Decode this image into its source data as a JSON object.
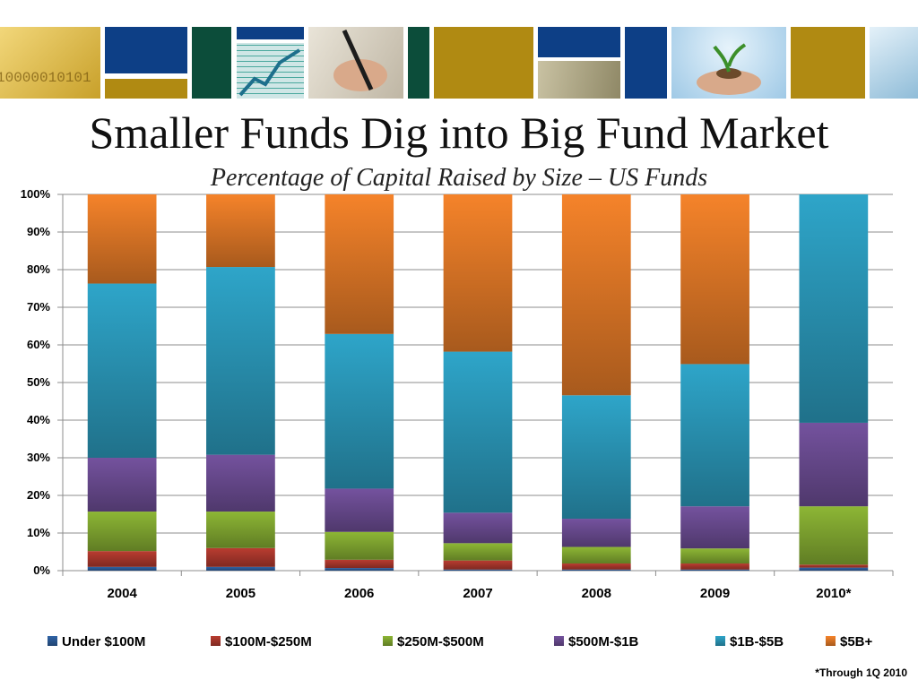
{
  "header": {
    "title": "Smaller Funds Dig into Big Fund Market",
    "subtitle": "Percentage of Capital Raised by Size – US Funds",
    "banner_text": "10000010101"
  },
  "footnote": "*Through 1Q 2010",
  "colors": {
    "navy": "#0d3f86",
    "gold": "#b08a12",
    "green": "#0c4d3a",
    "grid": "#8c8c8c"
  },
  "chart_data": {
    "type": "bar",
    "stacked": true,
    "title": "Percentage of Capital Raised by Size – US Funds",
    "categories": [
      "2004",
      "2005",
      "2006",
      "2007",
      "2008",
      "2009",
      "2010*"
    ],
    "y_ticks": [
      "0%",
      "10%",
      "20%",
      "30%",
      "40%",
      "50%",
      "60%",
      "70%",
      "80%",
      "90%",
      "100%"
    ],
    "ylim": [
      0,
      100
    ],
    "grid": true,
    "legend_position": "bottom",
    "series": [
      {
        "name": "Under $100M",
        "color": "#2e5e9e",
        "values": [
          1,
          1,
          0.7,
          0.3,
          0.3,
          0.3,
          0.8
        ]
      },
      {
        "name": "$100M-$250M",
        "color": "#b0392e",
        "values": [
          4.2,
          5,
          2.2,
          2.4,
          1.6,
          1.6,
          0.8
        ]
      },
      {
        "name": "$250M-$500M",
        "color": "#86ad32",
        "values": [
          10.5,
          9.7,
          7.4,
          4.6,
          4.4,
          4,
          15.5
        ]
      },
      {
        "name": "$500M-$1B",
        "color": "#6e4e96",
        "values": [
          14.3,
          15.1,
          11.5,
          8.1,
          7.5,
          11.2,
          22.2
        ]
      },
      {
        "name": "$1B-$5B",
        "color": "#2c9dbf",
        "values": [
          46.3,
          49.9,
          41.1,
          42.8,
          32.8,
          37.8,
          60.7
        ]
      },
      {
        "name": "$5B+",
        "color": "#e97d28",
        "values": [
          23.7,
          19.3,
          37.1,
          41.8,
          53.4,
          45.1,
          0
        ]
      }
    ]
  }
}
